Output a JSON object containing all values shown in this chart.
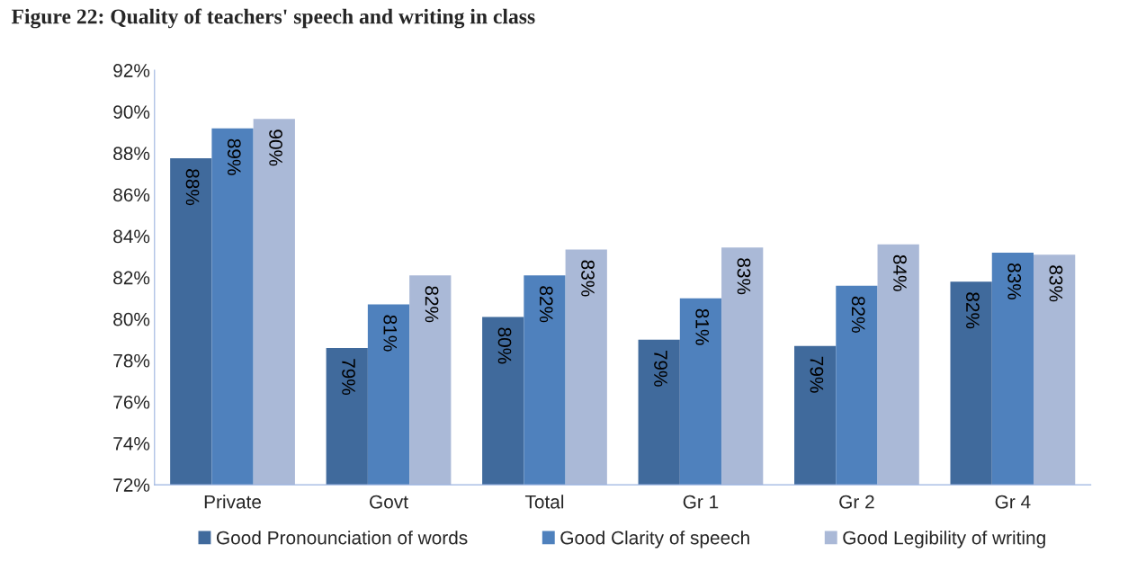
{
  "chart_data": {
    "type": "bar",
    "title": "Figure 22: Quality of teachers' speech and writing in class",
    "categories": [
      "Private",
      "Govt",
      "Total",
      "Gr 1",
      "Gr 2",
      "Gr 4"
    ],
    "series": [
      {
        "name": "Good Pronounciation of words",
        "color": "#406a9c",
        "values": [
          87.75,
          78.6,
          80.1,
          79.0,
          78.7,
          81.8
        ],
        "value_labels": [
          "88%",
          "79%",
          "80%",
          "79%",
          "79%",
          "82%"
        ]
      },
      {
        "name": "Good Clarity of speech",
        "color": "#4f81bd",
        "values": [
          89.2,
          80.7,
          82.1,
          81.0,
          81.6,
          83.2
        ],
        "value_labels": [
          "89%",
          "81%",
          "82%",
          "81%",
          "82%",
          "83%"
        ]
      },
      {
        "name": "Good Legibility of writing",
        "color": "#aab9d7",
        "values": [
          89.65,
          82.1,
          83.35,
          83.45,
          83.6,
          83.1
        ],
        "value_labels": [
          "90%",
          "82%",
          "83%",
          "83%",
          "84%",
          "83%"
        ]
      }
    ],
    "ylim": [
      72,
      92
    ],
    "yticks": [
      {
        "value": 72,
        "label": "72%"
      },
      {
        "value": 74,
        "label": "74%"
      },
      {
        "value": 76,
        "label": "76%"
      },
      {
        "value": 78,
        "label": "78%"
      },
      {
        "value": 80,
        "label": "80%"
      },
      {
        "value": 82,
        "label": "82%"
      },
      {
        "value": 84,
        "label": "84%"
      },
      {
        "value": 86,
        "label": "86%"
      },
      {
        "value": 88,
        "label": "88%"
      },
      {
        "value": 90,
        "label": "90%"
      },
      {
        "value": 92,
        "label": "92%"
      }
    ],
    "grid": false,
    "legend": "bottom"
  }
}
